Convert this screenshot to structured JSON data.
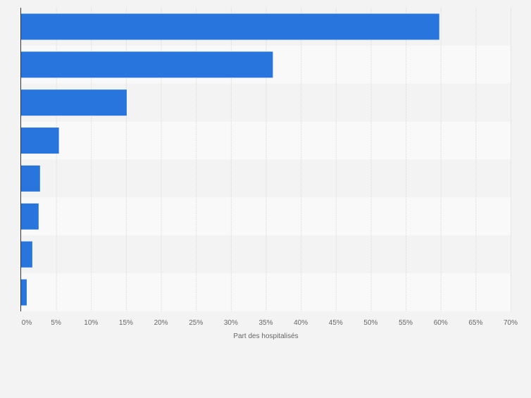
{
  "colors": {
    "background": "#f3f3f3",
    "band_light": "#f9f9f9",
    "band_dark": "#f3f3f3",
    "bar": "#2876dd",
    "grid": "#d9d9d9",
    "axis_line": "#333333",
    "tick_text": "#666666"
  },
  "chart_data": {
    "type": "bar",
    "orientation": "horizontal",
    "xlabel": "Part des hospitalisés",
    "xlim": [
      0,
      70
    ],
    "tick_values": [
      0,
      5,
      10,
      15,
      20,
      25,
      30,
      35,
      40,
      45,
      50,
      55,
      60,
      65,
      70
    ],
    "tick_labels": [
      "0%",
      "5%",
      "10%",
      "15%",
      "20%",
      "25%",
      "30%",
      "35%",
      "40%",
      "45%",
      "50%",
      "55%",
      "60%",
      "65%",
      "70%"
    ],
    "categories": [
      "",
      "",
      "",
      "",
      "",
      "",
      "",
      ""
    ],
    "values": [
      59.8,
      36.0,
      15.1,
      5.4,
      2.7,
      2.5,
      1.6,
      0.8
    ],
    "grid": true,
    "legend": "none"
  }
}
